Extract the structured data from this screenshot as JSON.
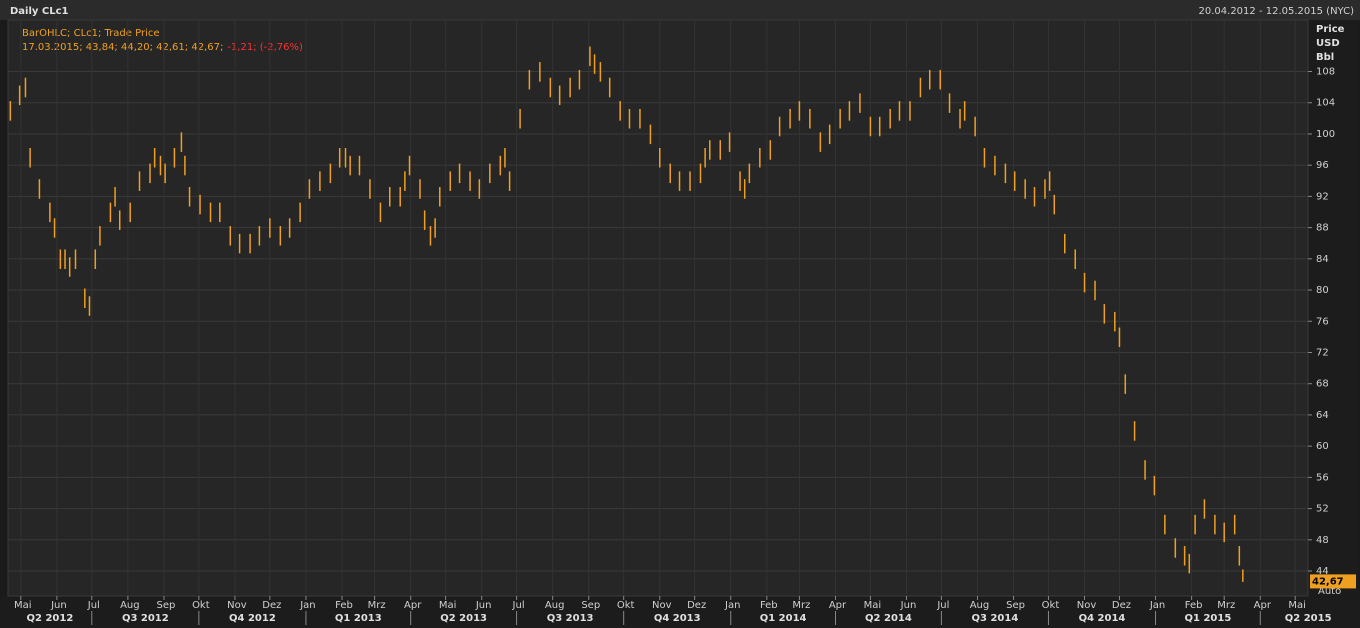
{
  "chart_data": {
    "type": "ohlc",
    "title": "Daily CLc1",
    "range_label": "20.04.2012 - 12.05.2015 (NYC)",
    "legend_title": "BarOHLC; CLc1; Trade Price",
    "legend_values": "17.03.2015; 43,84; 44,20; 42,61; 42,67;",
    "legend_change": "-1,21; (-2,76%)",
    "y_axis_labels": [
      "Price",
      "USD",
      "Bbl"
    ],
    "auto_label": "Auto",
    "color": "#f0a020",
    "xlim": [
      0,
      1117
    ],
    "ylim": [
      40.8,
      114.6
    ],
    "yticks": [
      44,
      48,
      52,
      56,
      60,
      64,
      68,
      72,
      76,
      80,
      84,
      88,
      92,
      96,
      100,
      104,
      108
    ],
    "grid": true,
    "last": {
      "value": 42.67,
      "label": "42,67"
    },
    "month_ticks": [
      {
        "value": 11,
        "label": "Mai"
      },
      {
        "value": 42,
        "label": "Jun"
      },
      {
        "value": 72,
        "label": "Jul"
      },
      {
        "value": 103,
        "label": "Aug"
      },
      {
        "value": 134,
        "label": "Sep"
      },
      {
        "value": 164,
        "label": "Okt"
      },
      {
        "value": 195,
        "label": "Nov"
      },
      {
        "value": 225,
        "label": "Dez"
      },
      {
        "value": 256,
        "label": "Jan"
      },
      {
        "value": 287,
        "label": "Feb"
      },
      {
        "value": 315,
        "label": "Mrz"
      },
      {
        "value": 346,
        "label": "Apr"
      },
      {
        "value": 376,
        "label": "Mai"
      },
      {
        "value": 407,
        "label": "Jun"
      },
      {
        "value": 437,
        "label": "Jul"
      },
      {
        "value": 468,
        "label": "Aug"
      },
      {
        "value": 499,
        "label": "Sep"
      },
      {
        "value": 529,
        "label": "Okt"
      },
      {
        "value": 560,
        "label": "Nov"
      },
      {
        "value": 590,
        "label": "Dez"
      },
      {
        "value": 621,
        "label": "Jan"
      },
      {
        "value": 652,
        "label": "Feb"
      },
      {
        "value": 680,
        "label": "Mrz"
      },
      {
        "value": 711,
        "label": "Apr"
      },
      {
        "value": 741,
        "label": "Mai"
      },
      {
        "value": 772,
        "label": "Jun"
      },
      {
        "value": 802,
        "label": "Jul"
      },
      {
        "value": 833,
        "label": "Aug"
      },
      {
        "value": 864,
        "label": "Sep"
      },
      {
        "value": 894,
        "label": "Okt"
      },
      {
        "value": 925,
        "label": "Nov"
      },
      {
        "value": 955,
        "label": "Dez"
      },
      {
        "value": 986,
        "label": "Jan"
      },
      {
        "value": 1017,
        "label": "Feb"
      },
      {
        "value": 1045,
        "label": "Mrz"
      },
      {
        "value": 1076,
        "label": "Apr"
      },
      {
        "value": 1106,
        "label": "Mai"
      }
    ],
    "quarter_ticks": [
      {
        "value": -19,
        "label": "Q2 2012"
      },
      {
        "value": 72,
        "label": "Q3 2012"
      },
      {
        "value": 164,
        "label": "Q4 2012"
      },
      {
        "value": 256,
        "label": "Q1 2013"
      },
      {
        "value": 346,
        "label": "Q2 2013"
      },
      {
        "value": 437,
        "label": "Q3 2013"
      },
      {
        "value": 529,
        "label": "Q4 2013"
      },
      {
        "value": 621,
        "label": "Q1 2014"
      },
      {
        "value": 711,
        "label": "Q2 2014"
      },
      {
        "value": 802,
        "label": "Q3 2014"
      },
      {
        "value": 894,
        "label": "Q4 2014"
      },
      {
        "value": 986,
        "label": "Q1 2015"
      },
      {
        "value": 1076,
        "label": "Q2 2015"
      }
    ],
    "x": [
      2,
      10,
      15,
      19,
      27,
      36,
      40,
      45,
      49,
      53,
      58,
      66,
      70,
      75,
      79,
      88,
      92,
      96,
      105,
      113,
      122,
      126,
      131,
      135,
      143,
      149,
      152,
      156,
      165,
      174,
      182,
      191,
      199,
      208,
      216,
      225,
      234,
      242,
      251,
      259,
      268,
      277,
      285,
      290,
      294,
      302,
      311,
      320,
      328,
      337,
      341,
      345,
      354,
      358,
      363,
      367,
      371,
      380,
      388,
      397,
      405,
      414,
      423,
      427,
      431,
      440,
      448,
      457,
      466,
      474,
      483,
      491,
      500,
      504,
      509,
      517,
      526,
      534,
      543,
      552,
      560,
      569,
      577,
      586,
      595,
      599,
      603,
      612,
      620,
      629,
      633,
      637,
      646,
      655,
      663,
      672,
      680,
      689,
      698,
      706,
      715,
      723,
      732,
      741,
      749,
      758,
      766,
      775,
      784,
      792,
      801,
      809,
      818,
      822,
      831,
      839,
      848,
      857,
      865,
      874,
      882,
      891,
      895,
      899,
      908,
      917,
      925,
      934,
      942,
      951,
      955,
      960,
      968,
      977,
      985,
      994,
      1003,
      1011,
      1015,
      1020,
      1028,
      1037,
      1045,
      1054,
      1058,
      1061
    ],
    "high": [
      104.2,
      106.2,
      107.2,
      98.2,
      94.2,
      91.2,
      89.2,
      85.2,
      85.2,
      84.2,
      85.2,
      80.2,
      79.2,
      85.2,
      88.2,
      91.2,
      93.2,
      90.2,
      91.2,
      95.2,
      96.2,
      98.2,
      97.2,
      96.2,
      98.2,
      100.2,
      97.2,
      93.2,
      92.2,
      91.2,
      91.2,
      88.2,
      87.2,
      87.2,
      88.2,
      89.2,
      88.2,
      89.2,
      91.2,
      94.2,
      95.2,
      96.2,
      98.2,
      98.2,
      97.2,
      97.2,
      94.2,
      91.2,
      93.2,
      93.2,
      95.2,
      97.2,
      94.2,
      90.2,
      88.2,
      89.2,
      93.2,
      95.2,
      96.2,
      95.2,
      94.2,
      96.2,
      97.2,
      98.2,
      95.2,
      103.2,
      108.2,
      109.2,
      107.2,
      106.2,
      107.2,
      108.2,
      111.2,
      110.2,
      109.2,
      107.2,
      104.2,
      103.2,
      103.2,
      101.2,
      98.2,
      96.2,
      95.2,
      95.2,
      96.2,
      98.2,
      99.2,
      99.2,
      100.2,
      95.2,
      94.2,
      96.2,
      98.2,
      99.2,
      102.2,
      103.2,
      104.2,
      103.2,
      100.2,
      101.2,
      103.2,
      104.2,
      105.2,
      102.2,
      102.2,
      103.2,
      104.2,
      104.2,
      107.2,
      108.2,
      108.2,
      105.2,
      103.2,
      104.2,
      102.2,
      98.2,
      97.2,
      96.2,
      95.2,
      94.2,
      93.2,
      94.2,
      95.2,
      92.2,
      87.2,
      85.2,
      82.2,
      81.2,
      78.2,
      77.2,
      75.2,
      69.2,
      63.2,
      58.2,
      56.2,
      51.2,
      48.2,
      47.2,
      46.2,
      51.2,
      53.2,
      51.2,
      50.2,
      51.2,
      47.2,
      44.2
    ],
    "low": [
      101.7,
      103.7,
      104.7,
      95.7,
      91.7,
      88.7,
      86.7,
      82.7,
      82.7,
      81.7,
      82.7,
      77.7,
      76.7,
      82.7,
      85.7,
      88.7,
      90.7,
      87.7,
      88.7,
      92.7,
      93.7,
      95.7,
      94.7,
      93.7,
      95.7,
      97.7,
      94.7,
      90.7,
      89.7,
      88.7,
      88.7,
      85.7,
      84.7,
      84.7,
      85.7,
      86.7,
      85.7,
      86.7,
      88.7,
      91.7,
      92.7,
      93.7,
      95.7,
      95.7,
      94.7,
      94.7,
      91.7,
      88.7,
      90.7,
      90.7,
      92.7,
      94.7,
      91.7,
      87.7,
      85.7,
      86.7,
      90.7,
      92.7,
      93.7,
      92.7,
      91.7,
      93.7,
      94.7,
      95.7,
      92.7,
      100.7,
      105.7,
      106.7,
      104.7,
      103.7,
      104.7,
      105.7,
      108.7,
      107.7,
      106.7,
      104.7,
      101.7,
      100.7,
      100.7,
      98.7,
      95.7,
      93.7,
      92.7,
      92.7,
      93.7,
      95.7,
      96.7,
      96.7,
      97.7,
      92.7,
      91.7,
      93.7,
      95.7,
      96.7,
      99.7,
      100.7,
      101.7,
      100.7,
      97.7,
      98.7,
      100.7,
      101.7,
      102.7,
      99.7,
      99.7,
      100.7,
      101.7,
      101.7,
      104.7,
      105.7,
      105.7,
      102.7,
      100.7,
      101.7,
      99.7,
      95.7,
      94.7,
      93.7,
      92.7,
      91.7,
      90.7,
      91.7,
      92.7,
      89.7,
      84.7,
      82.7,
      79.7,
      78.7,
      75.7,
      74.7,
      72.7,
      66.7,
      60.7,
      55.7,
      53.7,
      48.7,
      45.7,
      44.7,
      43.7,
      48.7,
      50.7,
      48.7,
      47.7,
      48.7,
      44.7,
      42.61
    ]
  }
}
